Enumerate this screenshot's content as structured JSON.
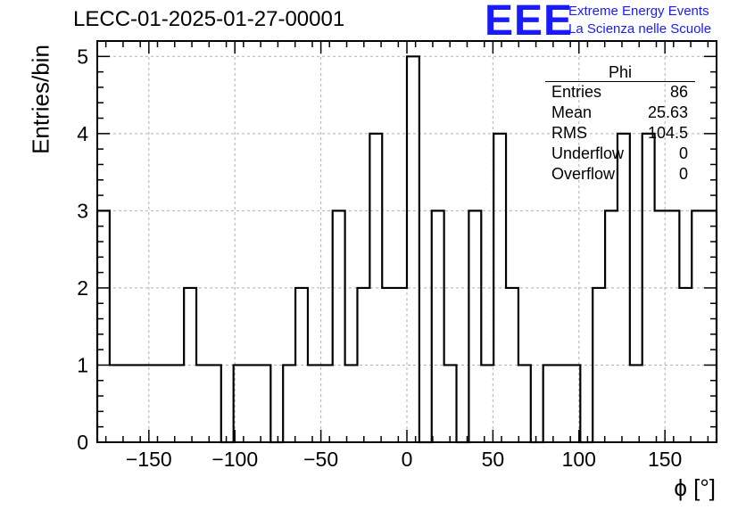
{
  "logo": {
    "text": "EEE",
    "line1": "Extreme Energy Events",
    "line2": "La Scienza nelle Scuole",
    "color": "#1a1aff"
  },
  "chart_data": {
    "type": "histogram",
    "title": "LECC-01-2025-01-27-00001",
    "xlabel": "ϕ [°]",
    "ylabel": "Entries/bin",
    "xlim": [
      -180,
      180
    ],
    "ylim": [
      0,
      5.2
    ],
    "grid": true,
    "xticks": [
      -150,
      -100,
      -50,
      0,
      50,
      100,
      150
    ],
    "xtick_labels": [
      "−150",
      "−100",
      "−50",
      "0",
      "50",
      "100",
      "150"
    ],
    "yticks": [
      0,
      1,
      2,
      3,
      4,
      5
    ],
    "ytick_labels": [
      "0",
      "1",
      "2",
      "3",
      "4",
      "5"
    ],
    "bin_edges": [
      -180,
      -172.8,
      -165.6,
      -158.4,
      -151.2,
      -144,
      -136.8,
      -129.6,
      -122.4,
      -115.2,
      -108,
      -100.8,
      -93.6,
      -86.4,
      -79.2,
      -72,
      -64.8,
      -57.6,
      -50.4,
      -43.2,
      -36,
      -28.8,
      -21.6,
      -14.4,
      -7.2,
      0,
      7.2,
      14.4,
      21.6,
      28.8,
      36,
      43.2,
      50.4,
      57.6,
      64.8,
      72,
      79.2,
      86.4,
      93.6,
      100.8,
      108,
      115.2,
      122.4,
      129.6,
      136.8,
      144,
      151.2,
      158.4,
      165.6,
      172.8,
      180
    ],
    "counts": [
      3,
      1,
      1,
      1,
      1,
      1,
      1,
      2,
      1,
      1,
      0,
      1,
      1,
      1,
      0,
      1,
      2,
      1,
      1,
      3,
      1,
      2,
      4,
      2,
      2,
      5,
      0,
      3,
      1,
      0,
      3,
      1,
      4,
      2,
      1,
      0,
      1,
      1,
      1,
      0,
      2,
      3,
      4,
      1,
      4,
      3,
      3,
      2,
      3,
      3
    ],
    "stats": {
      "name": "Phi",
      "rows": [
        {
          "label": "Entries",
          "value": "86"
        },
        {
          "label": "Mean",
          "value": "25.63"
        },
        {
          "label": "RMS",
          "value": "104.5"
        },
        {
          "label": "Underflow",
          "value": "0"
        },
        {
          "label": "Overflow",
          "value": "0"
        }
      ]
    },
    "legend_position": "top-right"
  }
}
